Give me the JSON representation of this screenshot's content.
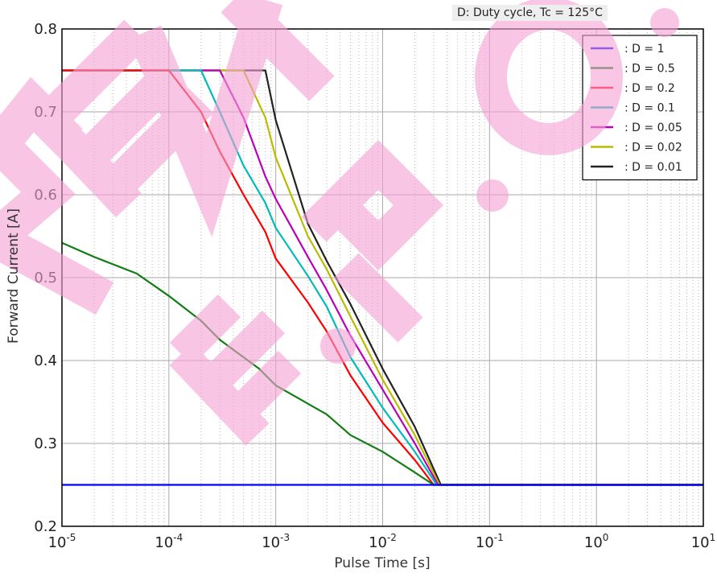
{
  "note": "D: Duty cycle,   Tc = 125°C",
  "watermark": "REV. E.P. O.",
  "chart_data": {
    "type": "line",
    "xscale": "log",
    "xlim": [
      1e-05,
      10
    ],
    "ylim": [
      0.2,
      0.8
    ],
    "xlabel": "Pulse Time [s]",
    "ylabel": "Forward Current [A]",
    "x_ticks": [
      {
        "base": "10",
        "exp": "-5"
      },
      {
        "base": "10",
        "exp": "-4"
      },
      {
        "base": "10",
        "exp": "-3"
      },
      {
        "base": "10",
        "exp": "-2"
      },
      {
        "base": "10",
        "exp": "-1"
      },
      {
        "base": "10",
        "exp": "0"
      },
      {
        "base": "10",
        "exp": "1"
      }
    ],
    "y_ticks": [
      "0.2",
      "0.3",
      "0.4",
      "0.5",
      "0.6",
      "0.7",
      "0.8"
    ],
    "grid": true,
    "legend_position": "top-right",
    "series": [
      {
        "name": ": D = 1",
        "color": "#0000ff",
        "points": [
          [
            1e-05,
            0.25
          ],
          [
            10,
            0.25
          ]
        ]
      },
      {
        "name": ": D = 0.5",
        "color": "#117d11",
        "points": [
          [
            1e-05,
            0.542
          ],
          [
            2e-05,
            0.525
          ],
          [
            5e-05,
            0.505
          ],
          [
            0.0001,
            0.478
          ],
          [
            0.0002,
            0.448
          ],
          [
            0.0003,
            0.425
          ],
          [
            0.0007,
            0.39
          ],
          [
            0.001,
            0.37
          ],
          [
            0.003,
            0.335
          ],
          [
            0.005,
            0.31
          ],
          [
            0.01,
            0.29
          ],
          [
            0.02,
            0.265
          ],
          [
            0.03,
            0.25
          ],
          [
            10,
            0.25
          ]
        ]
      },
      {
        "name": ": D = 0.2",
        "color": "#ff0000",
        "points": [
          [
            1e-05,
            0.75
          ],
          [
            0.0001,
            0.75
          ],
          [
            0.0002,
            0.7
          ],
          [
            0.0003,
            0.652
          ],
          [
            0.0005,
            0.6
          ],
          [
            0.0008,
            0.555
          ],
          [
            0.001,
            0.523
          ],
          [
            0.002,
            0.47
          ],
          [
            0.003,
            0.435
          ],
          [
            0.005,
            0.382
          ],
          [
            0.01,
            0.325
          ],
          [
            0.02,
            0.28
          ],
          [
            0.03,
            0.25
          ],
          [
            10,
            0.25
          ]
        ]
      },
      {
        "name": ": D = 0.1",
        "color": "#00bbbb",
        "points": [
          [
            1e-05,
            0.75
          ],
          [
            0.0002,
            0.75
          ],
          [
            0.0003,
            0.7
          ],
          [
            0.0005,
            0.635
          ],
          [
            0.0008,
            0.59
          ],
          [
            0.001,
            0.56
          ],
          [
            0.002,
            0.502
          ],
          [
            0.003,
            0.465
          ],
          [
            0.005,
            0.404
          ],
          [
            0.01,
            0.343
          ],
          [
            0.02,
            0.29
          ],
          [
            0.032,
            0.25
          ],
          [
            10,
            0.25
          ]
        ]
      },
      {
        "name": ": D = 0.05",
        "color": "#bb00bb",
        "points": [
          [
            1e-05,
            0.75
          ],
          [
            0.0003,
            0.75
          ],
          [
            0.0005,
            0.693
          ],
          [
            0.0008,
            0.622
          ],
          [
            0.001,
            0.595
          ],
          [
            0.002,
            0.525
          ],
          [
            0.003,
            0.485
          ],
          [
            0.005,
            0.43
          ],
          [
            0.01,
            0.365
          ],
          [
            0.02,
            0.3
          ],
          [
            0.033,
            0.25
          ],
          [
            10,
            0.25
          ]
        ]
      },
      {
        "name": ": D = 0.02",
        "color": "#bbbb00",
        "points": [
          [
            1e-05,
            0.75
          ],
          [
            0.0005,
            0.75
          ],
          [
            0.0008,
            0.693
          ],
          [
            0.001,
            0.645
          ],
          [
            0.002,
            0.55
          ],
          [
            0.003,
            0.51
          ],
          [
            0.005,
            0.453
          ],
          [
            0.01,
            0.377
          ],
          [
            0.02,
            0.31
          ],
          [
            0.034,
            0.25
          ],
          [
            10,
            0.25
          ]
        ]
      },
      {
        "name": ": D = 0.01",
        "color": "#222222",
        "points": [
          [
            1e-05,
            0.75
          ],
          [
            0.0008,
            0.75
          ],
          [
            0.001,
            0.69
          ],
          [
            0.002,
            0.565
          ],
          [
            0.003,
            0.52
          ],
          [
            0.005,
            0.468
          ],
          [
            0.01,
            0.39
          ],
          [
            0.02,
            0.32
          ],
          [
            0.035,
            0.25
          ],
          [
            10,
            0.25
          ]
        ]
      }
    ]
  }
}
